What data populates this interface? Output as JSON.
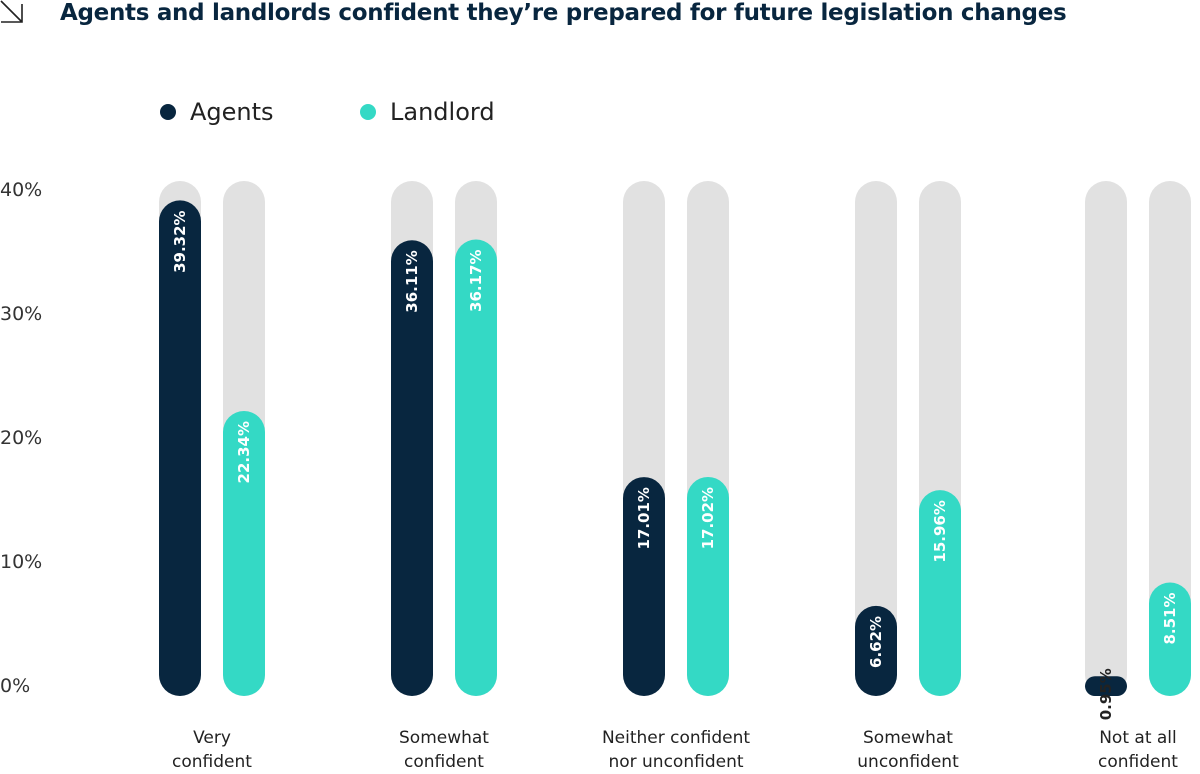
{
  "title": "Agents and landlords confident they’re prepared for future legislation changes",
  "icon": "diagonal-arrow-icon",
  "colors": {
    "agents": "#08263f",
    "landlord": "#34d9c5",
    "track": "#e1e1e1"
  },
  "chart_data": {
    "type": "bar",
    "title": "Agents and landlords confident they’re prepared for future legislation changes",
    "categories": [
      "Very confident",
      "Somewhat confident",
      "Neither confident nor unconfident",
      "Somewhat unconfident",
      "Not at all confident"
    ],
    "category_lines": [
      [
        "Very",
        "confident"
      ],
      [
        "Somewhat",
        "confident"
      ],
      [
        "Neither confident",
        "nor unconfident"
      ],
      [
        "Somewhat",
        "unconfident"
      ],
      [
        "Not at all",
        "confident"
      ]
    ],
    "series": [
      {
        "name": "Agents",
        "values": [
          39.32,
          36.11,
          17.01,
          6.62,
          0.95
        ],
        "labels": [
          "39.32%",
          "36.11%",
          "17.01%",
          "6.62%",
          "0.95%"
        ]
      },
      {
        "name": "Landlord",
        "values": [
          22.34,
          36.17,
          17.02,
          15.96,
          8.51
        ],
        "labels": [
          "22.34%",
          "36.17%",
          "17.02%",
          "15.96%",
          "8.51%"
        ]
      }
    ],
    "yticks": [
      "0%",
      "10%",
      "20%",
      "30%",
      "40%"
    ],
    "ylim": [
      0,
      40
    ],
    "legend": "top-left",
    "grid": false
  }
}
